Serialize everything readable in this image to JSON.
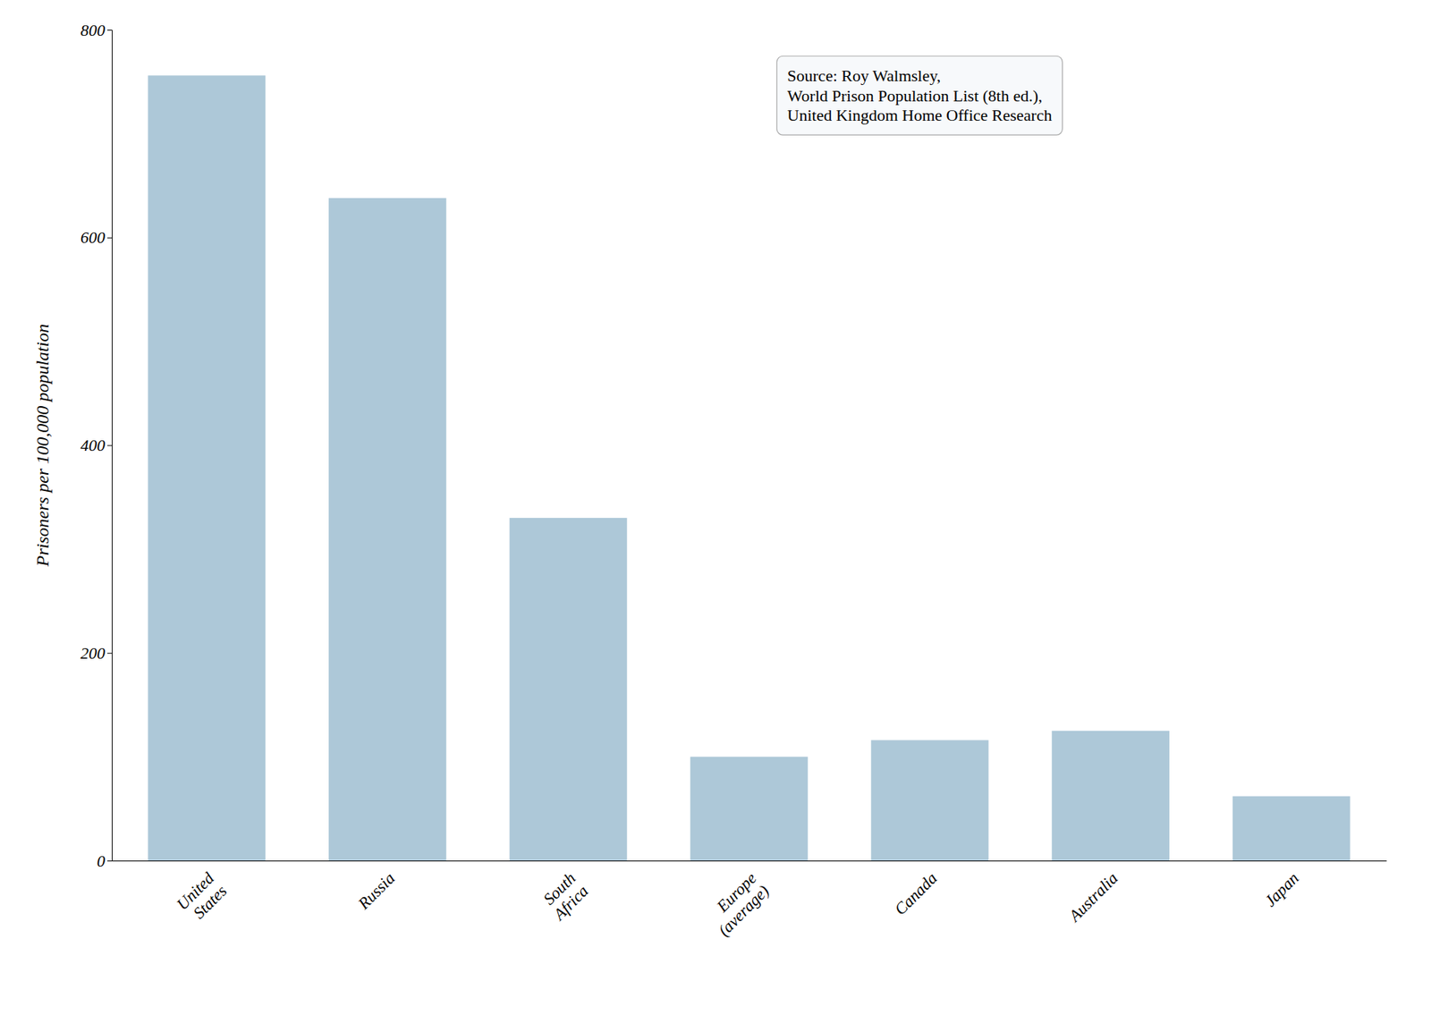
{
  "chart_data": {
    "type": "bar",
    "categories": [
      "United\nStates",
      "Russia",
      "South\nAfrica",
      "Europe\n(average)",
      "Canada",
      "Australia",
      "Japan"
    ],
    "values": [
      756,
      638,
      330,
      100,
      116,
      125,
      62
    ],
    "color": "#adc8d8",
    "ylabel": "Prisoners per 100,000 population",
    "ylim": [
      0,
      800
    ],
    "yticks": [
      0,
      200,
      400,
      600,
      800
    ],
    "annotation": "Source: Roy Walmsley,\nWorld Prison Population List (8th ed.),\nUnited Kingdom Home Office Research",
    "grid": false
  }
}
